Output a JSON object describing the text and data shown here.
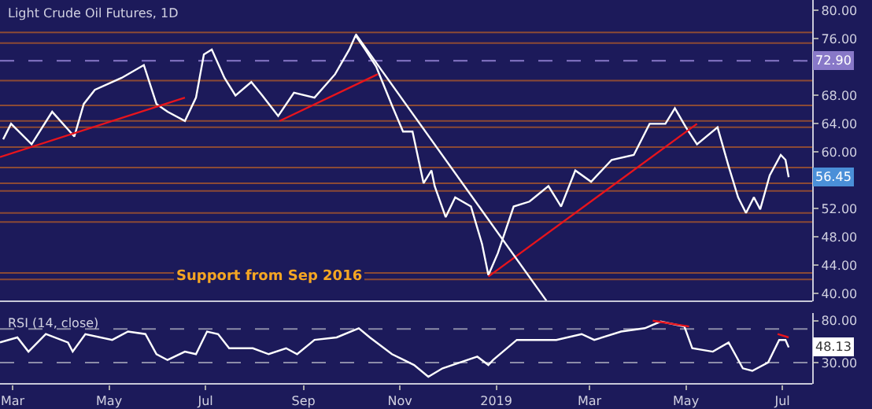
{
  "chart_data": [
    {
      "type": "line",
      "title": "Light Crude Oil Futures, 1D",
      "xlim": [
        "2018-02-21",
        "2019-07-20"
      ],
      "ylim": [
        38.9,
        81.5
      ],
      "yticks": [
        {
          "value": 40,
          "label": "40.00"
        },
        {
          "value": 44,
          "label": "44.00"
        },
        {
          "value": 48,
          "label": "48.00"
        },
        {
          "value": 52,
          "label": "52.00"
        },
        {
          "value": 60,
          "label": "60.00"
        },
        {
          "value": 64,
          "label": "64.00"
        },
        {
          "value": 68,
          "label": "68.00"
        },
        {
          "value": 76,
          "label": "76.00"
        },
        {
          "value": 80,
          "label": "80.00"
        }
      ],
      "tick_labels": "y",
      "grid": false,
      "series": [
        {
          "color": "#ffffff",
          "x": [
            "2018-02-23",
            "2018-02-28",
            "2018-03-13",
            "2018-03-26",
            "2018-04-09",
            "2018-04-15",
            "2018-04-22",
            "2018-05-09",
            "2018-05-23",
            "2018-05-31",
            "2018-06-07",
            "2018-06-18",
            "2018-06-25",
            "2018-06-30",
            "2018-07-05",
            "2018-07-13",
            "2018-07-20",
            "2018-07-30",
            "2018-08-06",
            "2018-08-16",
            "2018-08-26",
            "2018-09-08",
            "2018-09-21",
            "2018-09-30",
            "2018-10-04",
            "2018-10-10",
            "2018-10-17",
            "2018-10-27",
            "2018-11-03",
            "2018-11-09",
            "2018-11-16",
            "2018-11-21",
            "2018-11-23",
            "2018-11-30",
            "2018-12-06",
            "2018-12-16",
            "2018-12-23",
            "2018-12-27",
            "2019-01-02",
            "2019-01-12",
            "2019-01-22",
            "2019-02-03",
            "2019-02-11",
            "2019-02-20",
            "2019-03-02",
            "2019-03-15",
            "2019-03-29",
            "2019-04-08",
            "2019-04-18",
            "2019-04-24",
            "2019-05-01",
            "2019-05-08",
            "2019-05-21",
            "2019-05-28",
            "2019-06-03",
            "2019-06-08",
            "2019-06-13",
            "2019-06-17",
            "2019-06-23",
            "2019-06-30",
            "2019-07-03",
            "2019-07-05"
          ],
          "values": [
            61.8,
            64.0,
            61.1,
            65.7,
            62.2,
            66.8,
            68.8,
            70.5,
            72.3,
            66.8,
            65.7,
            64.4,
            67.7,
            73.8,
            74.5,
            70.5,
            68.0,
            69.9,
            68.0,
            65.1,
            68.4,
            67.7,
            71.0,
            74.5,
            76.5,
            74.5,
            72.1,
            66.6,
            62.9,
            62.9,
            55.6,
            57.4,
            55.2,
            50.8,
            53.6,
            52.3,
            47.0,
            42.6,
            45.7,
            52.3,
            53.0,
            55.2,
            52.3,
            57.4,
            55.8,
            58.9,
            59.6,
            64.0,
            64.0,
            66.2,
            63.5,
            61.1,
            63.5,
            58.0,
            53.6,
            51.4,
            53.6,
            51.9,
            56.7,
            59.6,
            58.9,
            56.45
          ]
        },
        {
          "color": "#e8141c",
          "x": [
            "2018-02-21",
            "2018-06-18"
          ],
          "values": [
            59.3,
            67.7
          ]
        },
        {
          "color": "#e8141c",
          "x": [
            "2018-08-17",
            "2018-10-18"
          ],
          "values": [
            64.4,
            71.0
          ]
        },
        {
          "color": "#e8141c",
          "x": [
            "2018-12-27",
            "2019-05-08"
          ],
          "values": [
            42.4,
            64.0
          ]
        },
        {
          "color": "#ffffff",
          "x": [
            "2018-10-04",
            "2019-02-02"
          ],
          "values": [
            76.7,
            38.9
          ]
        }
      ],
      "ref_lines": [
        {
          "axis": "y",
          "value": 76.9,
          "color": "#8b4a35"
        },
        {
          "axis": "y",
          "value": 75.4,
          "color": "#8b4a35"
        },
        {
          "axis": "y",
          "value": 72.9,
          "label": "72.90",
          "color": "#8878c8",
          "line_style": "dashed"
        },
        {
          "axis": "y",
          "value": 70.1,
          "color": "#8b4a35"
        },
        {
          "axis": "y",
          "value": 66.6,
          "color": "#8b4a35"
        },
        {
          "axis": "y",
          "value": 64.4,
          "color": "#8b4a35"
        },
        {
          "axis": "y",
          "value": 63.5,
          "color": "#8b4a35"
        },
        {
          "axis": "y",
          "value": 60.7,
          "color": "#8b4a35"
        },
        {
          "axis": "y",
          "value": 57.8,
          "color": "#8b4a35"
        },
        {
          "axis": "y",
          "value": 55.6,
          "color": "#8b4a35"
        },
        {
          "axis": "y",
          "value": 54.5,
          "color": "#8b4a35"
        },
        {
          "axis": "y",
          "value": 51.4,
          "color": "#8b4a35"
        },
        {
          "axis": "y",
          "value": 50.1,
          "color": "#8b4a35"
        },
        {
          "axis": "y",
          "value": 42.9,
          "color": "#8b4a35"
        },
        {
          "axis": "y",
          "value": 42.0,
          "color": "#8b4a35"
        }
      ],
      "annotations": [
        {
          "text": "Support from Sep 2016",
          "x": "2018-08-10",
          "y": 42.45
        },
        {
          "text": "56.45",
          "x": "2019-07-05",
          "y": 56.45
        }
      ]
    },
    {
      "type": "line",
      "title": "RSI (14, close)",
      "xlim": [
        "2018-02-21",
        "2019-07-20"
      ],
      "ylim": [
        4.5,
        89.4
      ],
      "yticks": [
        {
          "value": 80,
          "label": "80.00"
        },
        {
          "value": 30,
          "label": "30.00"
        }
      ],
      "xticks": [
        {
          "value": "2018-03-01",
          "label": "Mar"
        },
        {
          "value": "2018-05-01",
          "label": "May"
        },
        {
          "value": "2018-07-01",
          "label": "Jul"
        },
        {
          "value": "2018-09-01",
          "label": "Sep"
        },
        {
          "value": "2018-11-01",
          "label": "Nov"
        },
        {
          "value": "2019-01-01",
          "label": "2019"
        },
        {
          "value": "2019-03-01",
          "label": "Mar"
        },
        {
          "value": "2019-05-01",
          "label": "May"
        },
        {
          "value": "2019-07-01",
          "label": "Jul"
        }
      ],
      "grid": false,
      "series": [
        {
          "color": "#ffffff",
          "x": [
            "2018-02-21",
            "2018-03-04",
            "2018-03-11",
            "2018-03-22",
            "2018-04-05",
            "2018-04-08",
            "2018-04-16",
            "2018-05-03",
            "2018-05-13",
            "2018-05-24",
            "2018-05-31",
            "2018-06-07",
            "2018-06-18",
            "2018-06-25",
            "2018-07-02",
            "2018-07-09",
            "2018-07-16",
            "2018-07-31",
            "2018-08-10",
            "2018-08-21",
            "2018-08-28",
            "2018-09-08",
            "2018-09-22",
            "2018-10-06",
            "2018-10-13",
            "2018-10-27",
            "2018-11-10",
            "2018-11-19",
            "2018-11-28",
            "2018-12-20",
            "2018-12-27",
            "2018-12-30",
            "2019-01-14",
            "2019-01-28",
            "2019-02-08",
            "2019-02-24",
            "2019-03-04",
            "2019-03-21",
            "2019-04-05",
            "2019-04-15",
            "2019-04-30",
            "2019-05-05",
            "2019-05-18",
            "2019-05-28",
            "2019-06-06",
            "2019-06-12",
            "2019-06-22",
            "2019-06-29",
            "2019-07-03",
            "2019-07-05"
          ],
          "values": [
            54,
            60,
            43,
            64,
            54,
            43,
            64,
            57,
            67,
            64,
            40,
            33,
            43,
            40,
            67,
            64,
            47,
            47,
            40,
            47,
            40,
            57,
            60,
            71,
            60,
            40,
            27,
            13,
            23,
            37,
            27,
            33,
            57,
            57,
            57,
            64,
            57,
            67,
            71,
            79,
            73,
            47,
            43,
            54,
            23,
            20,
            30,
            57,
            57,
            48.13
          ]
        },
        {
          "color": "#e8141c",
          "x": [
            "2019-04-10",
            "2019-05-03"
          ],
          "values": [
            80,
            73
          ]
        },
        {
          "color": "#e8141c",
          "x": [
            "2019-06-28",
            "2019-07-05"
          ],
          "values": [
            64,
            60
          ]
        }
      ],
      "ref_lines": [
        {
          "axis": "y",
          "value": 70,
          "color": "#8c8ca8",
          "line_style": "dashed"
        },
        {
          "axis": "y",
          "value": 30,
          "color": "#8c8ca8",
          "line_style": "dashed"
        }
      ],
      "annotations": [
        {
          "text": "48.13",
          "x": "2019-07-05",
          "y": 48.13
        }
      ]
    }
  ]
}
